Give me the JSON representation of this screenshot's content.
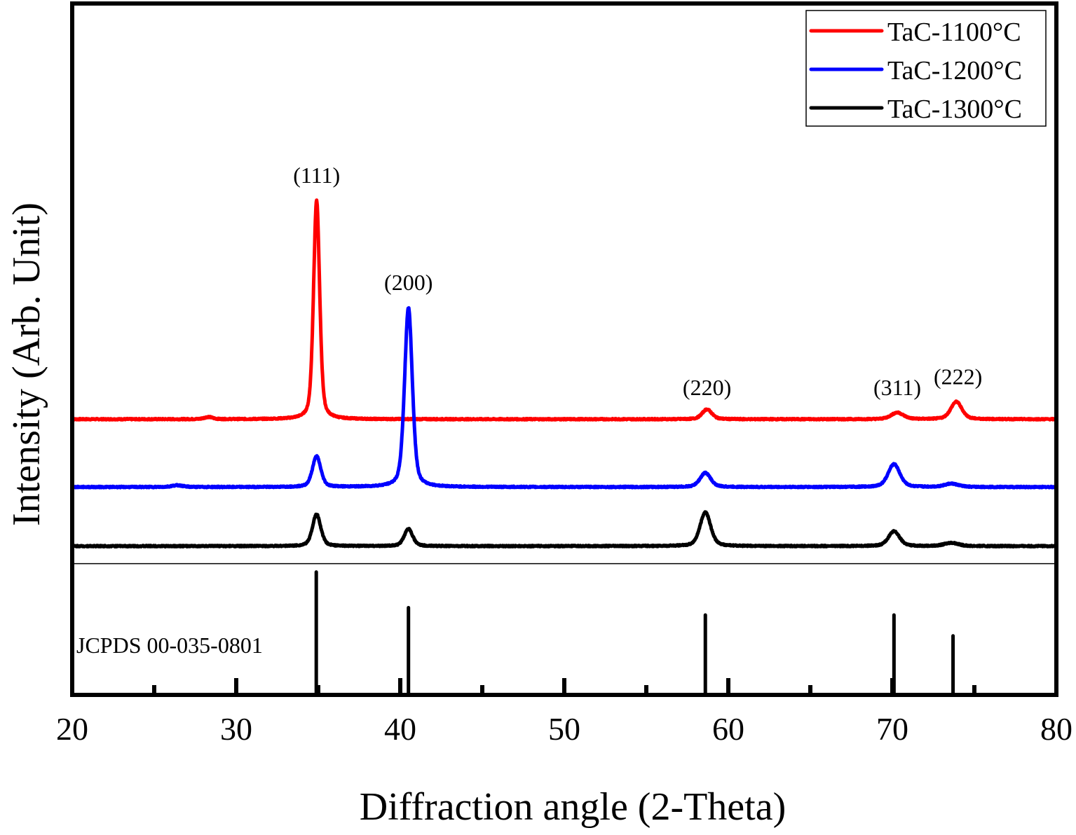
{
  "chart_data": {
    "type": "line",
    "title": "",
    "xlabel": "Diffraction angle (2-Theta)",
    "ylabel": "Intensity (Arb. Unit)",
    "xlim": [
      20,
      80
    ],
    "ylim": [
      -3.2,
      28.4
    ],
    "x_ticks": [
      20,
      30,
      40,
      50,
      60,
      70,
      80
    ],
    "x_tick_labels": [
      "20",
      "30",
      "40",
      "50",
      "60",
      "70",
      "80"
    ],
    "x_minor_ticks": [
      25,
      35,
      45,
      55,
      65,
      75
    ],
    "y_ticks": [],
    "grid": false,
    "legend": {
      "placement": "top-right"
    },
    "series": [
      {
        "name": "TaC-1100°C",
        "color": "#ff0000",
        "offset": 9.4,
        "peaks": [
          {
            "x": 28.3,
            "height": 0.1,
            "width": 0.3
          },
          {
            "x": 34.9,
            "height": 10.0,
            "width": 0.22
          },
          {
            "x": 58.7,
            "height": 0.45,
            "width": 0.35
          },
          {
            "x": 70.3,
            "height": 0.3,
            "width": 0.45
          },
          {
            "x": 73.9,
            "height": 0.8,
            "width": 0.4
          }
        ]
      },
      {
        "name": "TaC-1200°C",
        "color": "#0000ff",
        "offset": 6.3,
        "peaks": [
          {
            "x": 26.4,
            "height": 0.08,
            "width": 0.4
          },
          {
            "x": 34.9,
            "height": 1.4,
            "width": 0.3
          },
          {
            "x": 40.5,
            "height": 8.2,
            "width": 0.28
          },
          {
            "x": 58.6,
            "height": 0.65,
            "width": 0.38
          },
          {
            "x": 70.1,
            "height": 1.05,
            "width": 0.42
          },
          {
            "x": 73.6,
            "height": 0.15,
            "width": 0.5
          }
        ]
      },
      {
        "name": "TaC-1300°C",
        "color": "#000000",
        "offset": 3.6,
        "peaks": [
          {
            "x": 34.9,
            "height": 1.45,
            "width": 0.3
          },
          {
            "x": 40.5,
            "height": 0.8,
            "width": 0.3
          },
          {
            "x": 58.6,
            "height": 1.55,
            "width": 0.38
          },
          {
            "x": 70.1,
            "height": 0.68,
            "width": 0.4
          },
          {
            "x": 73.6,
            "height": 0.15,
            "width": 0.5
          }
        ]
      }
    ],
    "annotations": [
      {
        "text": "(111)",
        "x": 34.9,
        "y": 20.2
      },
      {
        "text": "(200)",
        "x": 40.5,
        "y": 15.3
      },
      {
        "text": "(220)",
        "x": 58.7,
        "y": 10.5
      },
      {
        "text": "(311)",
        "x": 70.3,
        "y": 10.5
      },
      {
        "text": "(222)",
        "x": 74.0,
        "y": 11.0
      }
    ],
    "reference": {
      "label": "JCPDS 00-035-0801",
      "separator_y": 2.8,
      "lines": [
        {
          "x": 34.88,
          "intensity": 100
        },
        {
          "x": 40.5,
          "intensity": 71
        },
        {
          "x": 58.6,
          "intensity": 65
        },
        {
          "x": 70.1,
          "intensity": 65
        },
        {
          "x": 73.7,
          "intensity": 48
        }
      ]
    }
  }
}
